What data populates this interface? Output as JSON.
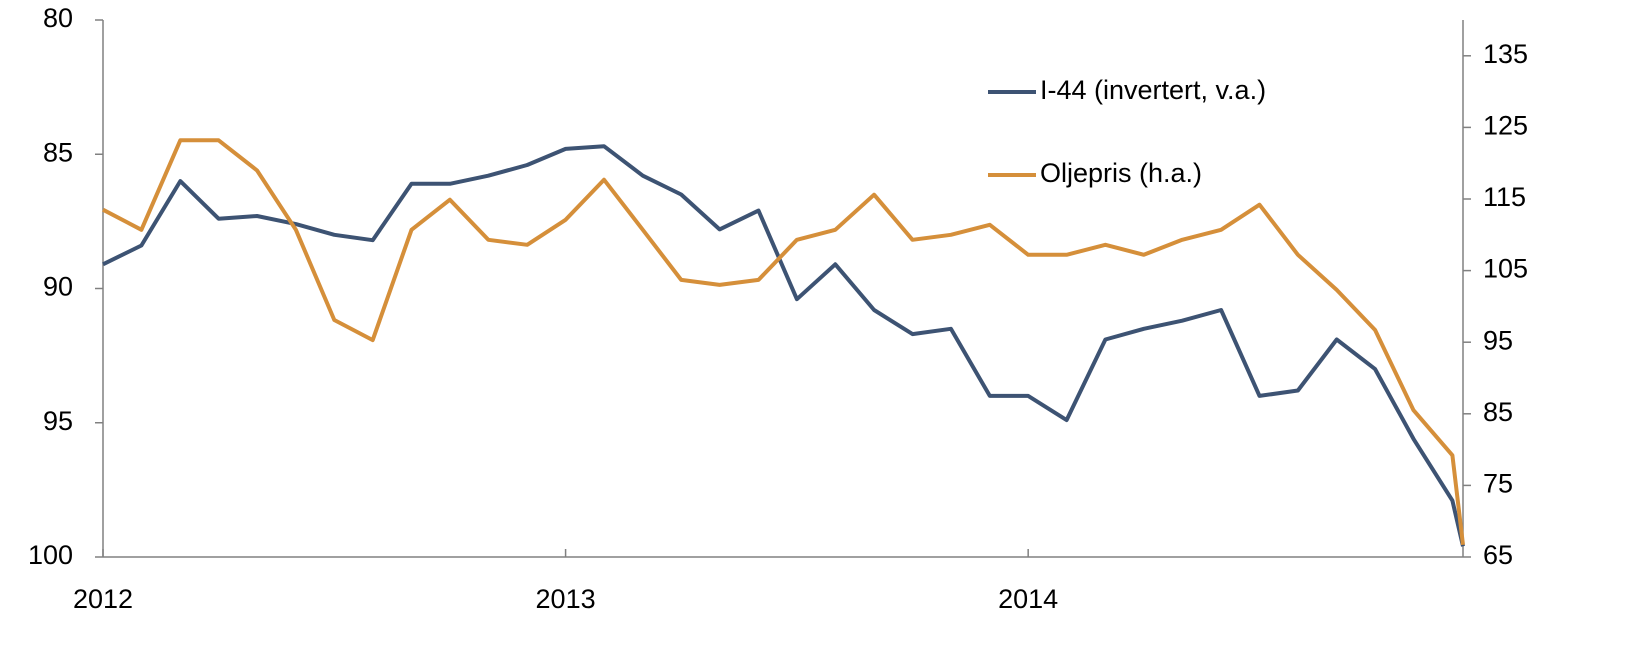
{
  "chart_data": {
    "type": "line",
    "x": [
      2012,
      2012.083,
      2012.167,
      2012.25,
      2012.333,
      2012.417,
      2012.5,
      2012.583,
      2012.667,
      2012.75,
      2012.833,
      2012.917,
      2013,
      2013.083,
      2013.167,
      2013.25,
      2013.333,
      2013.417,
      2013.5,
      2013.583,
      2013.667,
      2013.75,
      2013.833,
      2013.917,
      2014,
      2014.083,
      2014.167,
      2014.25,
      2014.333,
      2014.417,
      2014.5,
      2014.583,
      2014.667,
      2014.75,
      2014.833,
      2014.917,
      2014.94
    ],
    "series": [
      {
        "name": "I-44 (invertert, v.a.)",
        "color": "#3d5373",
        "axis": "y",
        "values": [
          89.1,
          88.4,
          86.0,
          87.4,
          87.3,
          87.6,
          88.0,
          88.2,
          86.1,
          86.1,
          85.8,
          85.4,
          84.8,
          84.7,
          85.8,
          86.5,
          87.8,
          87.1,
          90.4,
          89.1,
          90.8,
          91.7,
          91.5,
          94.0,
          94.0,
          94.9,
          91.9,
          91.5,
          91.2,
          90.8,
          94.0,
          93.8,
          91.9,
          93.0,
          95.6,
          97.9,
          99.6
        ]
      },
      {
        "name": "Oljepris (h.a.)",
        "color": "#d58f3a",
        "axis": "y2",
        "values": [
          113.5,
          110.7,
          123.2,
          123.2,
          119.0,
          110.7,
          98.1,
          95.3,
          110.7,
          114.9,
          109.3,
          108.6,
          112.1,
          117.7,
          110.7,
          103.7,
          103.0,
          103.7,
          109.3,
          110.7,
          115.6,
          109.3,
          110.0,
          111.4,
          107.2,
          107.2,
          108.6,
          107.2,
          109.3,
          110.7,
          114.2,
          107.2,
          102.3,
          96.7,
          85.5,
          79.2,
          66.7
        ]
      }
    ],
    "xlim": [
      2012,
      2014.94
    ],
    "xticks": [
      2012,
      2013,
      2014
    ],
    "ylim": [
      100,
      80
    ],
    "yticks": [
      80,
      85,
      90,
      95,
      100
    ],
    "y2lim": [
      65,
      140
    ],
    "y2ticks": [
      65,
      75,
      85,
      95,
      105,
      115,
      125,
      135
    ],
    "legend": "upper right"
  }
}
